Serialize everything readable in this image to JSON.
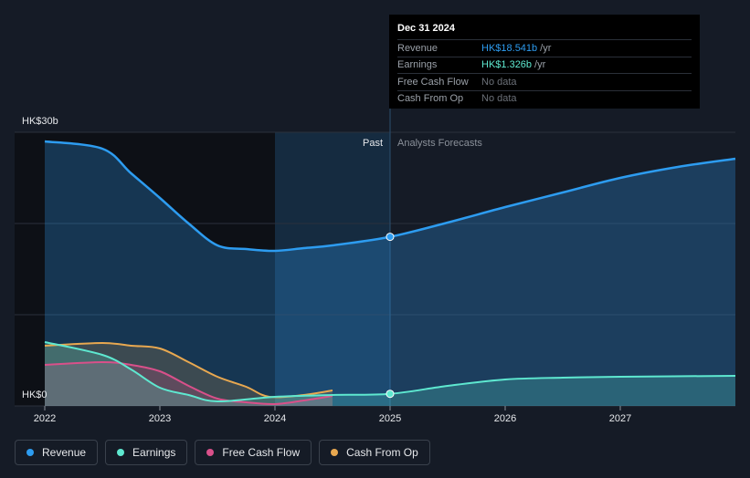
{
  "tooltip": {
    "date": "Dec 31 2024",
    "rows": [
      {
        "label": "Revenue",
        "value": "HK$18.541b",
        "unit": "/yr",
        "color": "#2d9cf0"
      },
      {
        "label": "Earnings",
        "value": "HK$1.326b",
        "unit": "/yr",
        "color": "#5ee8d0"
      },
      {
        "label": "Free Cash Flow",
        "value": "No data",
        "unit": "",
        "color": "#6b7078"
      },
      {
        "label": "Cash From Op",
        "value": "No data",
        "unit": "",
        "color": "#6b7078"
      }
    ]
  },
  "legend": [
    {
      "label": "Revenue",
      "color": "#2d9cf0"
    },
    {
      "label": "Earnings",
      "color": "#5ee8d0"
    },
    {
      "label": "Free Cash Flow",
      "color": "#d9508a"
    },
    {
      "label": "Cash From Op",
      "color": "#e8a850"
    }
  ],
  "chart_data": {
    "type": "line",
    "y_top_label": "HK$30b",
    "y_bottom_label": "HK$0",
    "ylim": [
      0,
      30
    ],
    "xlim": [
      2022.0,
      2028.0
    ],
    "x_ticks": [
      {
        "label": "2022",
        "x": 2022.0
      },
      {
        "label": "2023",
        "x": 2023.0
      },
      {
        "label": "2024",
        "x": 2024.0
      },
      {
        "label": "2025",
        "x": 2025.0
      },
      {
        "label": "2026",
        "x": 2026.0
      },
      {
        "label": "2027",
        "x": 2027.0
      }
    ],
    "past_label": "Past",
    "forecast_label": "Analysts Forecasts",
    "past_band_start": 2024.0,
    "divider_x": 2025.0,
    "marker_date": 2025.0,
    "colors": {
      "revenue": "#2d9cf0",
      "earnings": "#5ee8d0",
      "fcf": "#d9508a",
      "cfo": "#e8a850"
    },
    "series": [
      {
        "name": "Revenue",
        "key": "revenue",
        "points": [
          [
            2022.0,
            29.0
          ],
          [
            2022.5,
            28.2
          ],
          [
            2022.75,
            25.5
          ],
          [
            2023.0,
            22.8
          ],
          [
            2023.25,
            20.0
          ],
          [
            2023.5,
            17.6
          ],
          [
            2023.75,
            17.2
          ],
          [
            2024.0,
            17.0
          ],
          [
            2024.25,
            17.3
          ],
          [
            2024.5,
            17.6
          ],
          [
            2025.0,
            18.541
          ],
          [
            2025.5,
            20.1
          ],
          [
            2026.0,
            21.8
          ],
          [
            2026.5,
            23.4
          ],
          [
            2027.0,
            25.0
          ],
          [
            2027.5,
            26.2
          ],
          [
            2028.0,
            27.1
          ]
        ]
      },
      {
        "name": "Earnings",
        "key": "earnings",
        "points": [
          [
            2022.0,
            7.0
          ],
          [
            2022.5,
            5.6
          ],
          [
            2022.75,
            4.0
          ],
          [
            2023.0,
            2.0
          ],
          [
            2023.25,
            1.2
          ],
          [
            2023.5,
            0.5
          ],
          [
            2024.0,
            1.0
          ],
          [
            2024.5,
            1.2
          ],
          [
            2025.0,
            1.326
          ],
          [
            2025.5,
            2.2
          ],
          [
            2026.0,
            2.9
          ],
          [
            2026.5,
            3.1
          ],
          [
            2027.0,
            3.2
          ],
          [
            2028.0,
            3.3
          ]
        ]
      },
      {
        "name": "Free Cash Flow",
        "key": "fcf",
        "points": [
          [
            2022.0,
            4.5
          ],
          [
            2022.5,
            4.8
          ],
          [
            2022.75,
            4.5
          ],
          [
            2023.0,
            3.8
          ],
          [
            2023.25,
            2.2
          ],
          [
            2023.5,
            0.8
          ],
          [
            2023.75,
            0.4
          ],
          [
            2024.0,
            0.2
          ],
          [
            2024.25,
            0.6
          ],
          [
            2024.5,
            1.1
          ]
        ]
      },
      {
        "name": "Cash From Op",
        "key": "cfo",
        "points": [
          [
            2022.0,
            6.6
          ],
          [
            2022.5,
            6.9
          ],
          [
            2022.75,
            6.6
          ],
          [
            2023.0,
            6.3
          ],
          [
            2023.25,
            4.8
          ],
          [
            2023.5,
            3.2
          ],
          [
            2023.75,
            2.1
          ],
          [
            2023.95,
            1.0
          ],
          [
            2024.25,
            1.2
          ],
          [
            2024.5,
            1.7
          ]
        ]
      }
    ]
  }
}
